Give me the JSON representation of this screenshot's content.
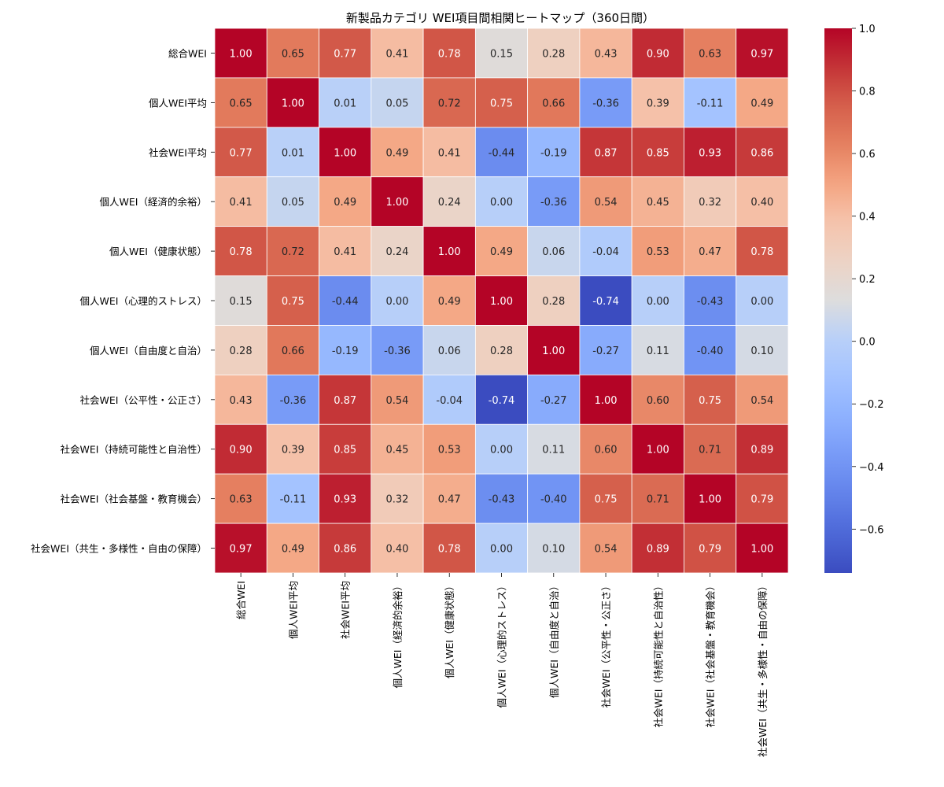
{
  "chart_data": {
    "type": "heatmap",
    "title": "新製品カテゴリ WEI項目間相関ヒートマップ（360日間）",
    "labels": [
      "総合WEI",
      "個人WEI平均",
      "社会WEI平均",
      "個人WEI（経済的余裕）",
      "個人WEI（健康状態）",
      "個人WEI（心理的ストレス）",
      "個人WEI（自由度と自治）",
      "社会WEI（公平性・公正さ）",
      "社会WEI（持続可能性と自治性）",
      "社会WEI（社会基盤・教育機会）",
      "社会WEI（共生・多様性・自由の保障）"
    ],
    "values": [
      [
        1.0,
        0.65,
        0.77,
        0.41,
        0.78,
        0.15,
        0.28,
        0.43,
        0.9,
        0.63,
        0.97
      ],
      [
        0.65,
        1.0,
        0.01,
        0.05,
        0.72,
        0.75,
        0.66,
        -0.36,
        0.39,
        -0.11,
        0.49
      ],
      [
        0.77,
        0.01,
        1.0,
        0.49,
        0.41,
        -0.44,
        -0.19,
        0.87,
        0.85,
        0.93,
        0.86
      ],
      [
        0.41,
        0.05,
        0.49,
        1.0,
        0.24,
        0.0,
        -0.36,
        0.54,
        0.45,
        0.32,
        0.4
      ],
      [
        0.78,
        0.72,
        0.41,
        0.24,
        1.0,
        0.49,
        0.06,
        -0.04,
        0.53,
        0.47,
        0.78
      ],
      [
        0.15,
        0.75,
        -0.44,
        0.0,
        0.49,
        1.0,
        0.28,
        -0.74,
        0.0,
        -0.43,
        0.0
      ],
      [
        0.28,
        0.66,
        -0.19,
        -0.36,
        0.06,
        0.28,
        1.0,
        -0.27,
        0.11,
        -0.4,
        0.1
      ],
      [
        0.43,
        -0.36,
        0.87,
        0.54,
        -0.04,
        -0.74,
        -0.27,
        1.0,
        0.6,
        0.75,
        0.54
      ],
      [
        0.9,
        0.39,
        0.85,
        0.45,
        0.53,
        0.0,
        0.11,
        0.6,
        1.0,
        0.71,
        0.89
      ],
      [
        0.63,
        -0.11,
        0.93,
        0.32,
        0.47,
        -0.43,
        -0.4,
        0.75,
        0.71,
        1.0,
        0.79
      ],
      [
        0.97,
        0.49,
        0.86,
        0.4,
        0.78,
        0.0,
        0.1,
        0.54,
        0.89,
        0.79,
        1.0
      ]
    ],
    "colormap": "coolwarm",
    "vmin": -0.74,
    "vmax": 1.0,
    "colorbar_ticks": [
      1.0,
      0.8,
      0.6,
      0.4,
      0.2,
      0.0,
      -0.2,
      -0.4,
      -0.6
    ],
    "colorbar_tick_labels": [
      "1.0",
      "0.8",
      "0.6",
      "0.4",
      "0.2",
      "0.0",
      "−0.2",
      "−0.4",
      "−0.6"
    ],
    "annotate": true,
    "legend": "colorbar-right"
  }
}
